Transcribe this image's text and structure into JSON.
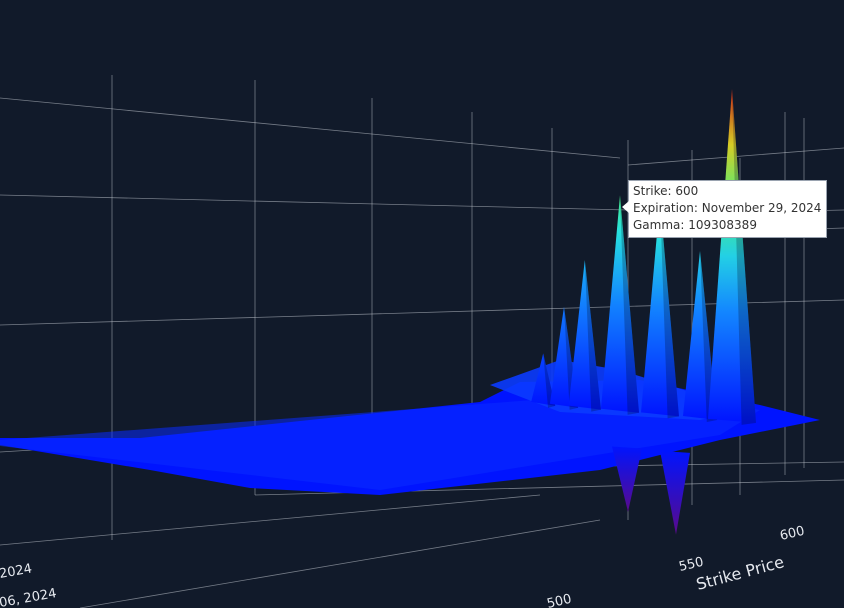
{
  "colors": {
    "background": "#111a2a",
    "grid": "#c8cdd6",
    "surface_low": "#0014ff",
    "surface_high": "#c0201a",
    "surface_negative": "#5a0a8a"
  },
  "chart_data": {
    "type": "surface3d",
    "title": "",
    "axes": {
      "x": {
        "label": "Strike Price",
        "ticks": [
          500,
          550,
          600
        ]
      },
      "y": {
        "label": "",
        "ticks": [
          "2024",
          "06, 2024"
        ]
      },
      "z": {
        "label": "",
        "ticks": []
      }
    },
    "series": [
      {
        "peaks": [
          {
            "strike": 527,
            "gamma": 25000000
          },
          {
            "strike": 540,
            "gamma": 50000000
          },
          {
            "strike": 553,
            "gamma": 75000000
          },
          {
            "strike": 575,
            "gamma": 110000000
          },
          {
            "strike": 600,
            "gamma": 109308389
          },
          {
            "strike": 625,
            "gamma": 85000000
          },
          {
            "strike": 645,
            "gamma": 170000000
          }
        ],
        "troughs": [
          {
            "strike": 580,
            "gamma": -15000000
          },
          {
            "strike": 610,
            "gamma": -20000000
          }
        ]
      }
    ],
    "tooltip": {
      "strike_line": "Strike: 600",
      "expiration_line": "Expiration: November 29, 2024",
      "gamma_line": "Gamma: 109308389"
    }
  }
}
